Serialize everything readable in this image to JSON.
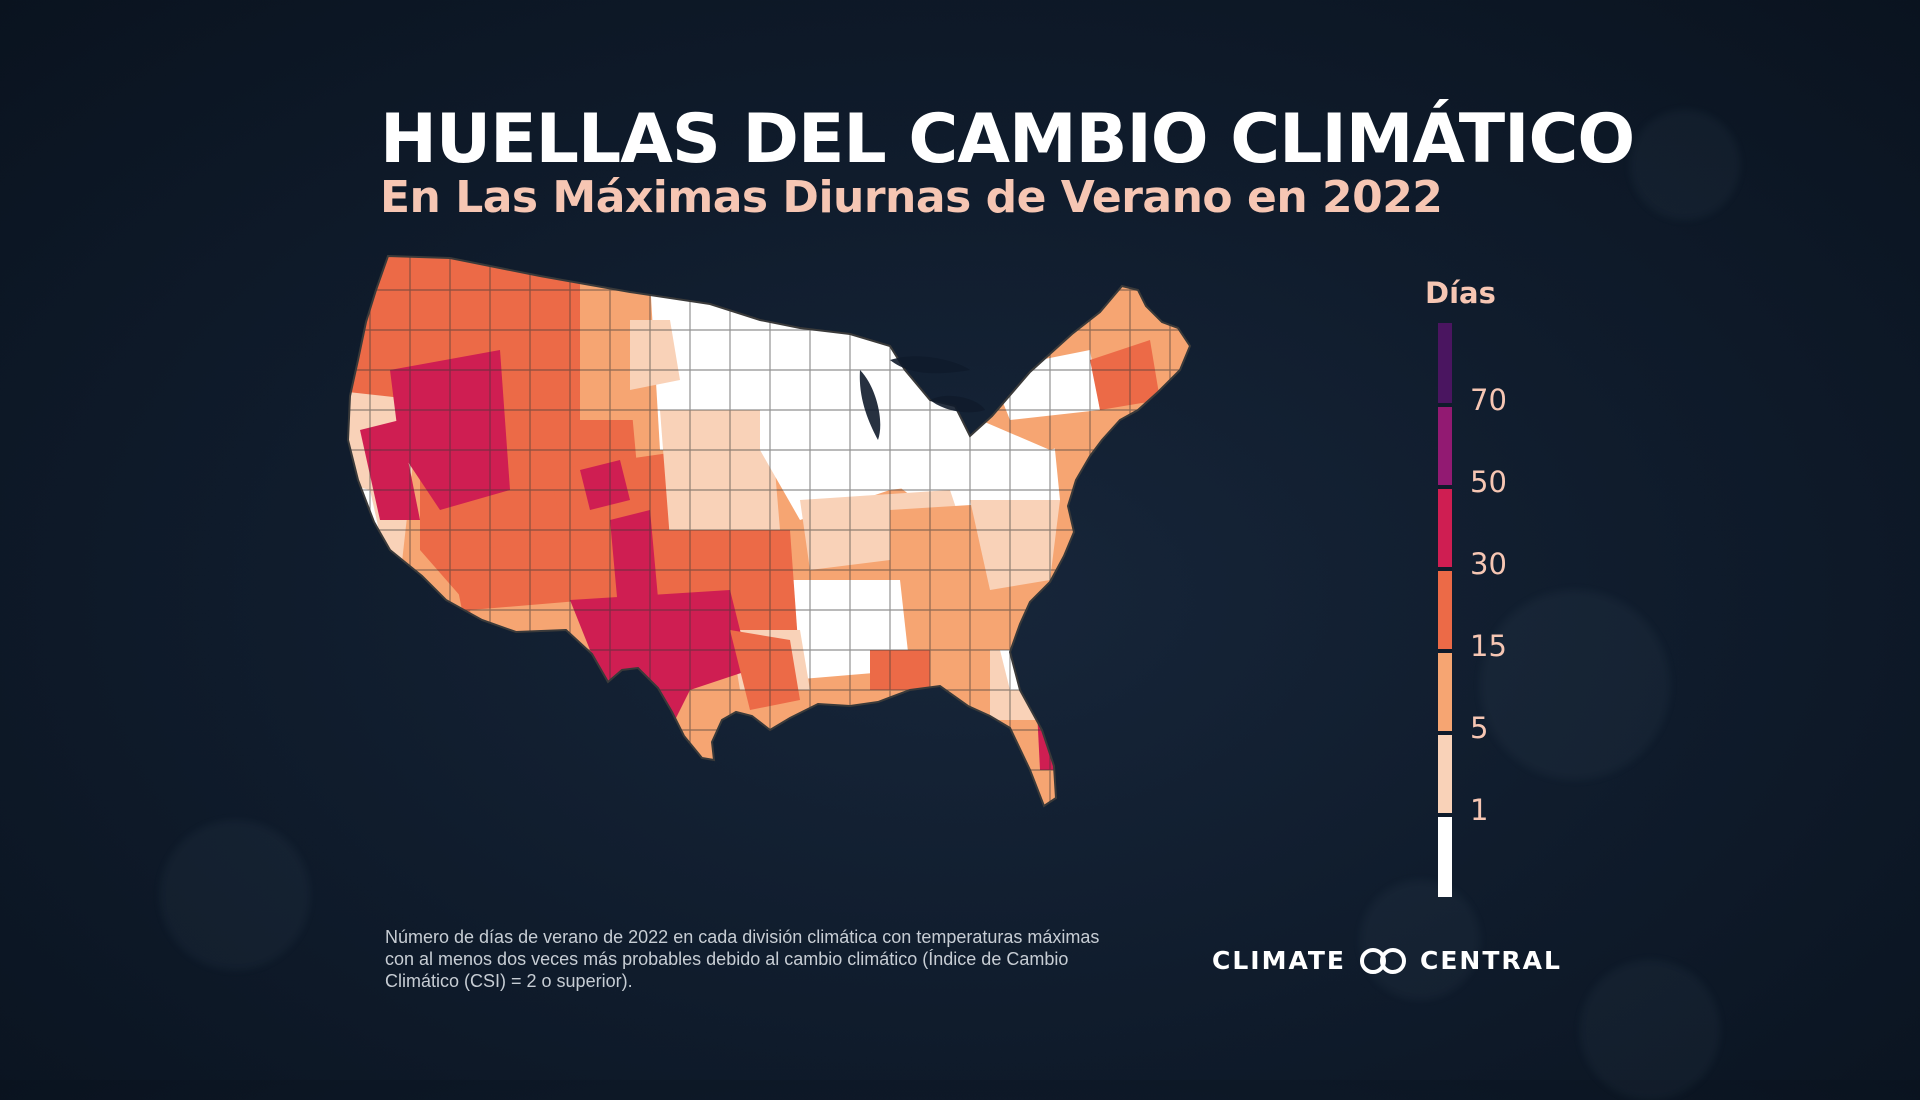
{
  "title": "HUELLAS DEL CAMBIO CLIMÁTICO",
  "subtitle": "En Las Máximas Diurnas de Verano en 2022",
  "legend": {
    "title": "Días",
    "labels": [
      "70",
      "50",
      "30",
      "15",
      "5",
      "1"
    ],
    "colors": [
      "#4a1560",
      "#921a72",
      "#cf1e52",
      "#ec6a47",
      "#f6a572",
      "#f9d2b8",
      "#ffffff"
    ]
  },
  "footnote": "Número de días de verano de 2022 en cada división climática con temperaturas máximas con al menos dos veces más probables debido al cambio climático (Índice de Cambio Climático (CSI) = 2 o superior).",
  "logo": {
    "left": "CLIMATE",
    "right": "CENTRAL",
    "icon": "infinity-rings-icon"
  },
  "colors": {
    "background": "#0f1b2b",
    "title": "#ffffff",
    "subtitle": "#f6c6b3",
    "border": "#3a3a3a"
  }
}
